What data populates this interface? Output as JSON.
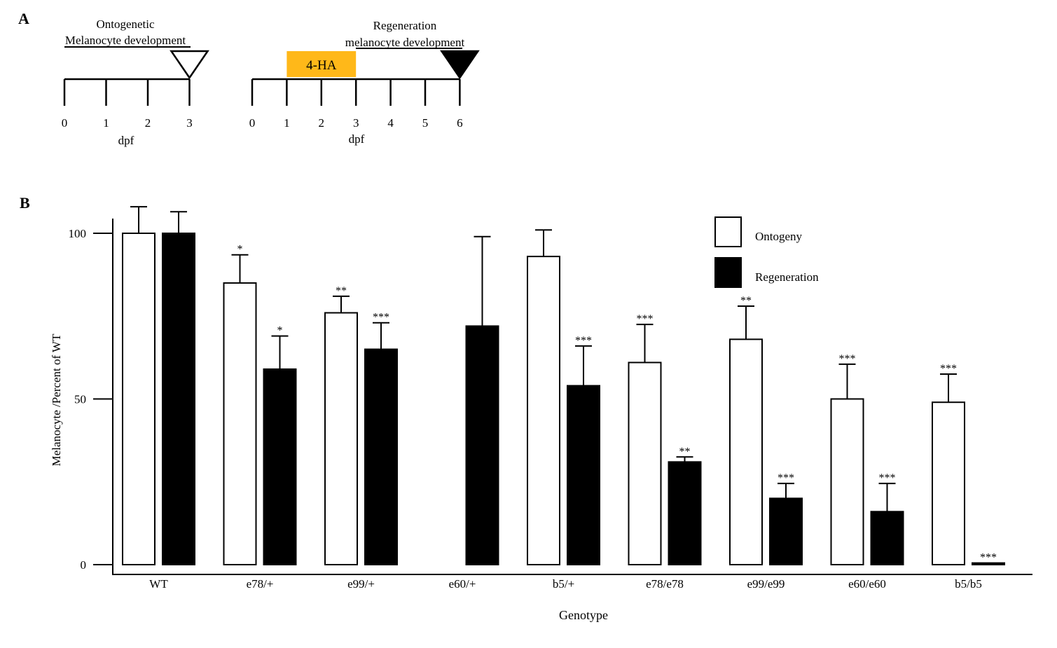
{
  "panel_a": {
    "label": "A",
    "left": {
      "caption_line1": "Ontogenetic",
      "caption_line2": "Melanocyte development",
      "ticks": [
        "0",
        "1",
        "2",
        "3"
      ],
      "xlabel": "dpf",
      "marker_day": 3,
      "marker_style": "open"
    },
    "right": {
      "caption_line1": "Regeneration",
      "caption_line2": "melanocyte development",
      "ticks": [
        "0",
        "1",
        "2",
        "3",
        "4",
        "5",
        "6"
      ],
      "xlabel": "dpf",
      "treatment_label": "4-HA",
      "treatment_start": 1,
      "treatment_end": 3,
      "treatment_color": "#FFB819",
      "marker_day": 6,
      "marker_style": "filled"
    }
  },
  "panel_b": {
    "label": "B"
  },
  "chart_data": {
    "type": "bar",
    "title": "",
    "xlabel": "Genotype",
    "ylabel": "Melanocyte /Percent of WT",
    "ylim": [
      0,
      100
    ],
    "yticks": [
      0,
      50,
      100
    ],
    "categories": [
      "WT",
      "e78/+",
      "e99/+",
      "e60/+",
      "b5/+",
      "e78/e78",
      "e99/e99",
      "e60/e60",
      "b5/b5"
    ],
    "legend_position": "top-right",
    "series": [
      {
        "name": "Ontogeny",
        "fill": "#FFFFFF",
        "values": [
          100,
          85,
          76,
          null,
          93,
          61,
          68,
          50,
          49
        ],
        "errors": [
          8,
          8.5,
          5,
          null,
          8,
          11.5,
          10,
          10.5,
          8.5
        ],
        "significance": [
          "",
          "*",
          "**",
          "",
          "",
          "***",
          "**",
          "***",
          "***"
        ]
      },
      {
        "name": "Regeneration",
        "fill": "#000000",
        "values": [
          100,
          59,
          65,
          72,
          54,
          31,
          20,
          16,
          0.5
        ],
        "errors": [
          6.5,
          10,
          8,
          27,
          12,
          1.5,
          4.5,
          8.5,
          0
        ],
        "significance": [
          "",
          "*",
          "***",
          "",
          "***",
          "**",
          "***",
          "***",
          "***"
        ]
      }
    ]
  }
}
